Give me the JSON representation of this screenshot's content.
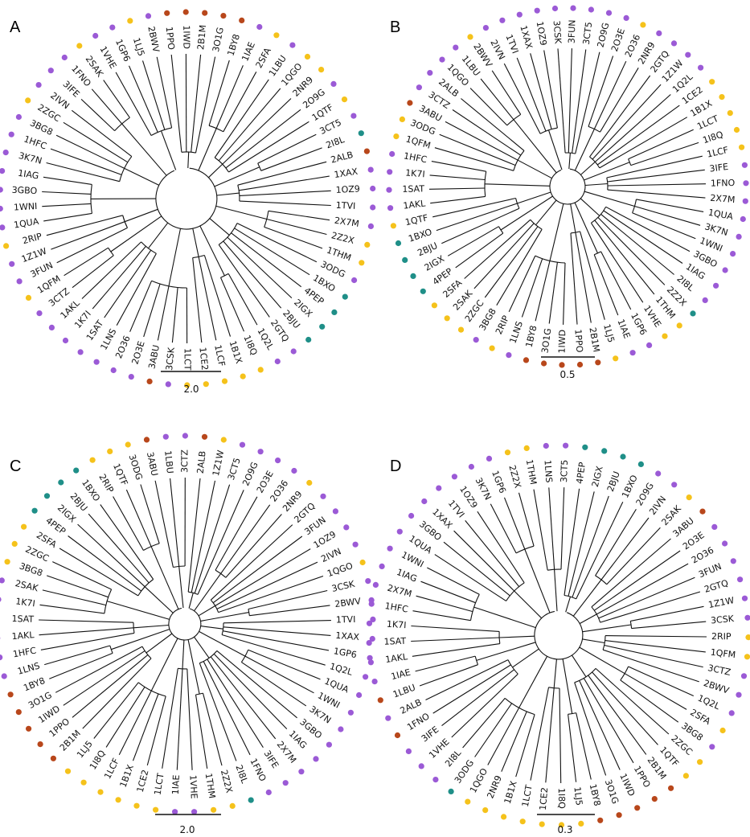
{
  "colors": {
    "purple": "#9b5ad6",
    "yellow": "#f5c21b",
    "rust": "#b8471b",
    "teal": "#1f8f88"
  },
  "panels": [
    {
      "letter": "A",
      "scale_label": "2.0",
      "leaves": [
        {
          "label": "1PPO",
          "color": "rust"
        },
        {
          "label": "1IWD",
          "color": "rust"
        },
        {
          "label": "2B1M",
          "color": "rust"
        },
        {
          "label": "3O1G",
          "color": "rust"
        },
        {
          "label": "1BY8",
          "color": "rust"
        },
        {
          "label": "1IAE",
          "color": "purple"
        },
        {
          "label": "2SFA",
          "color": "yellow"
        },
        {
          "label": "1LBU",
          "color": "purple"
        },
        {
          "label": "1QGO",
          "color": "yellow"
        },
        {
          "label": "2NR9",
          "color": "yellow"
        },
        {
          "label": "2O9G",
          "color": "purple"
        },
        {
          "label": "1QTF",
          "color": "yellow"
        },
        {
          "label": "3CT5",
          "color": "purple"
        },
        {
          "label": "2I8L",
          "color": "teal"
        },
        {
          "label": "2ALB",
          "color": "rust"
        },
        {
          "label": "1XAX",
          "color": "purple"
        },
        {
          "label": "1OZ9",
          "color": "purple"
        },
        {
          "label": "1TVI",
          "color": "purple"
        },
        {
          "label": "2X7M",
          "color": "purple"
        },
        {
          "label": "2Z2X",
          "color": "yellow"
        },
        {
          "label": "1THM",
          "color": "yellow"
        },
        {
          "label": "3ODG",
          "color": "purple"
        },
        {
          "label": "1BXO",
          "color": "teal"
        },
        {
          "label": "4PEP",
          "color": "teal"
        },
        {
          "label": "2IGX",
          "color": "teal"
        },
        {
          "label": "2BJU",
          "color": "teal"
        },
        {
          "label": "2GTQ",
          "color": "purple"
        },
        {
          "label": "1Q2L",
          "color": "purple"
        },
        {
          "label": "1I8Q",
          "color": "yellow"
        },
        {
          "label": "1B1X",
          "color": "yellow"
        },
        {
          "label": "1LCF",
          "color": "yellow"
        },
        {
          "label": "1CE2",
          "color": "yellow"
        },
        {
          "label": "1LCT",
          "color": "yellow"
        },
        {
          "label": "3CSK",
          "color": "purple"
        },
        {
          "label": "3ABU",
          "color": "rust"
        },
        {
          "label": "2O3E",
          "color": "purple"
        },
        {
          "label": "2O36",
          "color": "purple"
        },
        {
          "label": "1LNS",
          "color": "purple"
        },
        {
          "label": "1SAT",
          "color": "purple"
        },
        {
          "label": "1K7I",
          "color": "purple"
        },
        {
          "label": "1AKL",
          "color": "purple"
        },
        {
          "label": "3CTZ",
          "color": "purple"
        },
        {
          "label": "1QFM",
          "color": "yellow"
        },
        {
          "label": "3FUN",
          "color": "purple"
        },
        {
          "label": "1Z1W",
          "color": "purple"
        },
        {
          "label": "2RIP",
          "color": "yellow"
        },
        {
          "label": "1QUA",
          "color": "purple"
        },
        {
          "label": "1WNI",
          "color": "purple"
        },
        {
          "label": "3GBO",
          "color": "purple"
        },
        {
          "label": "1IAG",
          "color": "purple"
        },
        {
          "label": "3K7N",
          "color": "purple"
        },
        {
          "label": "1HFC",
          "color": "purple"
        },
        {
          "label": "3BG8",
          "color": "purple"
        },
        {
          "label": "2ZGC",
          "color": "yellow"
        },
        {
          "label": "2IVN",
          "color": "purple"
        },
        {
          "label": "3IFE",
          "color": "purple"
        },
        {
          "label": "1FNO",
          "color": "purple"
        },
        {
          "label": "2SAK",
          "color": "yellow"
        },
        {
          "label": "1VHE",
          "color": "purple"
        },
        {
          "label": "1GP6",
          "color": "purple"
        },
        {
          "label": "1LJ5",
          "color": "yellow"
        },
        {
          "label": "2BWV",
          "color": "purple"
        }
      ]
    },
    {
      "letter": "B",
      "scale_label": "0.5",
      "leaves": [
        {
          "label": "3CSK",
          "color": "purple"
        },
        {
          "label": "3FUN",
          "color": "purple"
        },
        {
          "label": "3CT5",
          "color": "purple"
        },
        {
          "label": "2O9G",
          "color": "purple"
        },
        {
          "label": "2O3E",
          "color": "purple"
        },
        {
          "label": "2O36",
          "color": "yellow"
        },
        {
          "label": "2NR9",
          "color": "purple"
        },
        {
          "label": "2GTQ",
          "color": "purple"
        },
        {
          "label": "1Z1W",
          "color": "purple"
        },
        {
          "label": "1Q2L",
          "color": "purple"
        },
        {
          "label": "1CE2",
          "color": "yellow"
        },
        {
          "label": "1B1X",
          "color": "yellow"
        },
        {
          "label": "1LCT",
          "color": "yellow"
        },
        {
          "label": "1I8Q",
          "color": "yellow"
        },
        {
          "label": "1LCF",
          "color": "yellow"
        },
        {
          "label": "3IFE",
          "color": "purple"
        },
        {
          "label": "1FNO",
          "color": "purple"
        },
        {
          "label": "2X7M",
          "color": "purple"
        },
        {
          "label": "1QUA",
          "color": "purple"
        },
        {
          "label": "3K7N",
          "color": "purple"
        },
        {
          "label": "1WNI",
          "color": "purple"
        },
        {
          "label": "3GBO",
          "color": "purple"
        },
        {
          "label": "1IAG",
          "color": "purple"
        },
        {
          "label": "2I8L",
          "color": "purple"
        },
        {
          "label": "2Z2X",
          "color": "teal"
        },
        {
          "label": "1THM",
          "color": "yellow"
        },
        {
          "label": "1VHE",
          "color": "yellow"
        },
        {
          "label": "1GP6",
          "color": "purple"
        },
        {
          "label": "1IAE",
          "color": "purple"
        },
        {
          "label": "1LJ5",
          "color": "yellow"
        },
        {
          "label": "2B1M",
          "color": "rust"
        },
        {
          "label": "1PPO",
          "color": "rust"
        },
        {
          "label": "1IWD",
          "color": "rust"
        },
        {
          "label": "3O1G",
          "color": "rust"
        },
        {
          "label": "1BY8",
          "color": "rust"
        },
        {
          "label": "1LNS",
          "color": "purple"
        },
        {
          "label": "2RIP",
          "color": "yellow"
        },
        {
          "label": "3BG8",
          "color": "purple"
        },
        {
          "label": "2ZGC",
          "color": "yellow"
        },
        {
          "label": "2SAK",
          "color": "yellow"
        },
        {
          "label": "2SFA",
          "color": "yellow"
        },
        {
          "label": "4PEP",
          "color": "teal"
        },
        {
          "label": "2IGX",
          "color": "teal"
        },
        {
          "label": "2BJU",
          "color": "teal"
        },
        {
          "label": "1BXO",
          "color": "teal"
        },
        {
          "label": "1QTF",
          "color": "yellow"
        },
        {
          "label": "1AKL",
          "color": "purple"
        },
        {
          "label": "1SAT",
          "color": "purple"
        },
        {
          "label": "1K7I",
          "color": "purple"
        },
        {
          "label": "1HFC",
          "color": "purple"
        },
        {
          "label": "1QFM",
          "color": "yellow"
        },
        {
          "label": "3ODG",
          "color": "yellow"
        },
        {
          "label": "3ABU",
          "color": "rust"
        },
        {
          "label": "3CTZ",
          "color": "purple"
        },
        {
          "label": "2ALB",
          "color": "purple"
        },
        {
          "label": "1QGO",
          "color": "purple"
        },
        {
          "label": "1LBU",
          "color": "purple"
        },
        {
          "label": "2BWV",
          "color": "yellow"
        },
        {
          "label": "2IVN",
          "color": "purple"
        },
        {
          "label": "1TVI",
          "color": "purple"
        },
        {
          "label": "1XAX",
          "color": "purple"
        },
        {
          "label": "1OZ9",
          "color": "purple"
        }
      ]
    },
    {
      "letter": "C",
      "scale_label": "2.0",
      "leaves": [
        {
          "label": "2ALB",
          "color": "rust"
        },
        {
          "label": "1Z1W",
          "color": "yellow"
        },
        {
          "label": "3CT5",
          "color": "purple"
        },
        {
          "label": "2O9G",
          "color": "purple"
        },
        {
          "label": "2O3E",
          "color": "purple"
        },
        {
          "label": "2O36",
          "color": "purple"
        },
        {
          "label": "2NR9",
          "color": "yellow"
        },
        {
          "label": "2GTQ",
          "color": "purple"
        },
        {
          "label": "3FUN",
          "color": "purple"
        },
        {
          "label": "1OZ9",
          "color": "purple"
        },
        {
          "label": "2IVN",
          "color": "purple"
        },
        {
          "label": "1QGO",
          "color": "yellow"
        },
        {
          "label": "3CSK",
          "color": "purple"
        },
        {
          "label": "2BWV",
          "color": "purple"
        },
        {
          "label": "1TVI",
          "color": "purple"
        },
        {
          "label": "1XAX",
          "color": "purple"
        },
        {
          "label": "1GP6",
          "color": "purple"
        },
        {
          "label": "1Q2L",
          "color": "purple"
        },
        {
          "label": "1QUA",
          "color": "purple"
        },
        {
          "label": "1WNI",
          "color": "purple"
        },
        {
          "label": "3K7N",
          "color": "purple"
        },
        {
          "label": "3GBO",
          "color": "purple"
        },
        {
          "label": "1IAG",
          "color": "purple"
        },
        {
          "label": "2X7M",
          "color": "purple"
        },
        {
          "label": "3IFE",
          "color": "purple"
        },
        {
          "label": "1FNO",
          "color": "purple"
        },
        {
          "label": "2I8L",
          "color": "teal"
        },
        {
          "label": "2Z2X",
          "color": "yellow"
        },
        {
          "label": "1THM",
          "color": "yellow"
        },
        {
          "label": "1VHE",
          "color": "purple"
        },
        {
          "label": "1IAE",
          "color": "purple"
        },
        {
          "label": "1LCT",
          "color": "yellow"
        },
        {
          "label": "1CE2",
          "color": "yellow"
        },
        {
          "label": "1B1X",
          "color": "yellow"
        },
        {
          "label": "1LCF",
          "color": "yellow"
        },
        {
          "label": "1I8Q",
          "color": "yellow"
        },
        {
          "label": "1LJ5",
          "color": "yellow"
        },
        {
          "label": "2B1M",
          "color": "rust"
        },
        {
          "label": "1PPO",
          "color": "rust"
        },
        {
          "label": "1IWD",
          "color": "rust"
        },
        {
          "label": "3O1G",
          "color": "rust"
        },
        {
          "label": "1BY8",
          "color": "rust"
        },
        {
          "label": "1LNS",
          "color": "purple"
        },
        {
          "label": "1HFC",
          "color": "purple"
        },
        {
          "label": "1AKL",
          "color": "purple"
        },
        {
          "label": "1SAT",
          "color": "purple"
        },
        {
          "label": "1K7I",
          "color": "purple"
        },
        {
          "label": "2SAK",
          "color": "purple"
        },
        {
          "label": "3BG8",
          "color": "yellow"
        },
        {
          "label": "2ZGC",
          "color": "yellow"
        },
        {
          "label": "2SFA",
          "color": "yellow"
        },
        {
          "label": "4PEP",
          "color": "teal"
        },
        {
          "label": "2IGX",
          "color": "teal"
        },
        {
          "label": "2BJU",
          "color": "teal"
        },
        {
          "label": "1BXO",
          "color": "teal"
        },
        {
          "label": "2RIP",
          "color": "yellow"
        },
        {
          "label": "1QTF",
          "color": "yellow"
        },
        {
          "label": "3ODG",
          "color": "yellow"
        },
        {
          "label": "3ABU",
          "color": "rust"
        },
        {
          "label": "1LBU",
          "color": "purple"
        },
        {
          "label": "3CTZ",
          "color": "purple"
        }
      ]
    },
    {
      "letter": "D",
      "scale_label": "0.3",
      "leaves": [
        {
          "label": "4PEP",
          "color": "teal"
        },
        {
          "label": "2IGX",
          "color": "teal"
        },
        {
          "label": "2BJU",
          "color": "teal"
        },
        {
          "label": "1BXO",
          "color": "teal"
        },
        {
          "label": "2O9G",
          "color": "purple"
        },
        {
          "label": "2IVN",
          "color": "purple"
        },
        {
          "label": "2SAK",
          "color": "yellow"
        },
        {
          "label": "3ABU",
          "color": "rust"
        },
        {
          "label": "2O3E",
          "color": "purple"
        },
        {
          "label": "2O36",
          "color": "purple"
        },
        {
          "label": "3FUN",
          "color": "purple"
        },
        {
          "label": "2GTQ",
          "color": "purple"
        },
        {
          "label": "1Z1W",
          "color": "purple"
        },
        {
          "label": "3CSK",
          "color": "purple"
        },
        {
          "label": "2RIP",
          "color": "yellow"
        },
        {
          "label": "1QFM",
          "color": "yellow"
        },
        {
          "label": "3CTZ",
          "color": "purple"
        },
        {
          "label": "2BWV",
          "color": "purple"
        },
        {
          "label": "1Q2L",
          "color": "purple"
        },
        {
          "label": "2SFA",
          "color": "yellow"
        },
        {
          "label": "3BG8",
          "color": "purple"
        },
        {
          "label": "2ZGC",
          "color": "yellow"
        },
        {
          "label": "1QTF",
          "color": "yellow"
        },
        {
          "label": "2B1M",
          "color": "rust"
        },
        {
          "label": "1PPO",
          "color": "rust"
        },
        {
          "label": "1IWD",
          "color": "rust"
        },
        {
          "label": "3O1G",
          "color": "rust"
        },
        {
          "label": "1BY8",
          "color": "rust"
        },
        {
          "label": "1LJ5",
          "color": "yellow"
        },
        {
          "label": "1I8Q",
          "color": "yellow"
        },
        {
          "label": "1CE2",
          "color": "yellow"
        },
        {
          "label": "1LCT",
          "color": "yellow"
        },
        {
          "label": "1B1X",
          "color": "yellow"
        },
        {
          "label": "2NR9",
          "color": "yellow"
        },
        {
          "label": "1QGO",
          "color": "yellow"
        },
        {
          "label": "3ODG",
          "color": "teal"
        },
        {
          "label": "2I8L",
          "color": "purple"
        },
        {
          "label": "1VHE",
          "color": "purple"
        },
        {
          "label": "3IFE",
          "color": "purple"
        },
        {
          "label": "1FNO",
          "color": "rust"
        },
        {
          "label": "2ALB",
          "color": "purple"
        },
        {
          "label": "1LBU",
          "color": "rust"
        },
        {
          "label": "1IAE",
          "color": "purple"
        },
        {
          "label": "1AKL",
          "color": "purple"
        },
        {
          "label": "1SAT",
          "color": "purple"
        },
        {
          "label": "1K7I",
          "color": "purple"
        },
        {
          "label": "1HFC",
          "color": "purple"
        },
        {
          "label": "2X7M",
          "color": "purple"
        },
        {
          "label": "1IAG",
          "color": "purple"
        },
        {
          "label": "1WNI",
          "color": "purple"
        },
        {
          "label": "1QUA",
          "color": "purple"
        },
        {
          "label": "3GBO",
          "color": "purple"
        },
        {
          "label": "1XAX",
          "color": "purple"
        },
        {
          "label": "1TVI",
          "color": "purple"
        },
        {
          "label": "1OZ9",
          "color": "purple"
        },
        {
          "label": "3K7N",
          "color": "purple"
        },
        {
          "label": "1GP6",
          "color": "purple"
        },
        {
          "label": "2Z2X",
          "color": "yellow"
        },
        {
          "label": "1THM",
          "color": "yellow"
        },
        {
          "label": "1LNS",
          "color": "purple"
        },
        {
          "label": "3CT5",
          "color": "purple"
        }
      ]
    }
  ]
}
